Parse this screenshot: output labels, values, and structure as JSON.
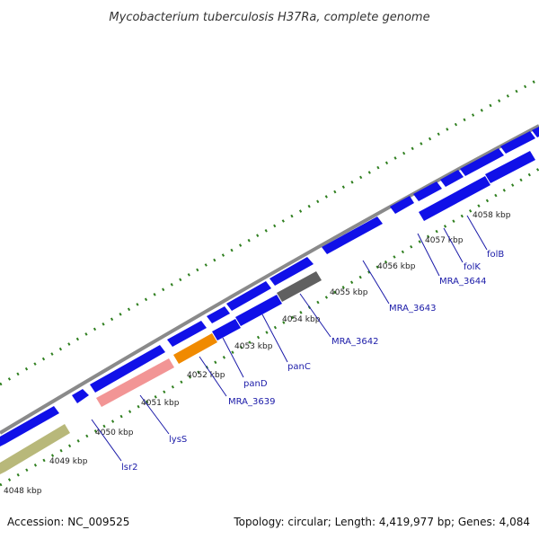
{
  "title": "Mycobacterium tuberculosis H37Ra, complete genome",
  "footer": {
    "accession": "Accession: NC_009525",
    "summary": "Topology: circular; Length: 4,419,977 bp; Genes: 4,084"
  },
  "colors": {
    "backbone": "#8a8a8a",
    "cds": "#1010e8",
    "trna": "#f29595",
    "rrna": "#f08a00",
    "other": "#b8b87a",
    "pseudogene": "#606060",
    "tick": "#2f7f1f",
    "gene_label": "#1a1aa8"
  },
  "ticks": [
    {
      "label": "4048 kbp"
    },
    {
      "label": "4049 kbp"
    },
    {
      "label": "4050 kbp"
    },
    {
      "label": "4051 kbp"
    },
    {
      "label": "4052 kbp"
    },
    {
      "label": "4053 kbp"
    },
    {
      "label": "4054 kbp"
    },
    {
      "label": "4055 kbp"
    },
    {
      "label": "4056 kbp"
    },
    {
      "label": "4057 kbp"
    },
    {
      "label": "4058 kbp"
    }
  ],
  "gene_labels": [
    "lsr2",
    "lysS",
    "MRA_3639",
    "panD",
    "panC",
    "MRA_3642",
    "MRA_3643",
    "MRA_3644",
    "folK",
    "folB"
  ]
}
